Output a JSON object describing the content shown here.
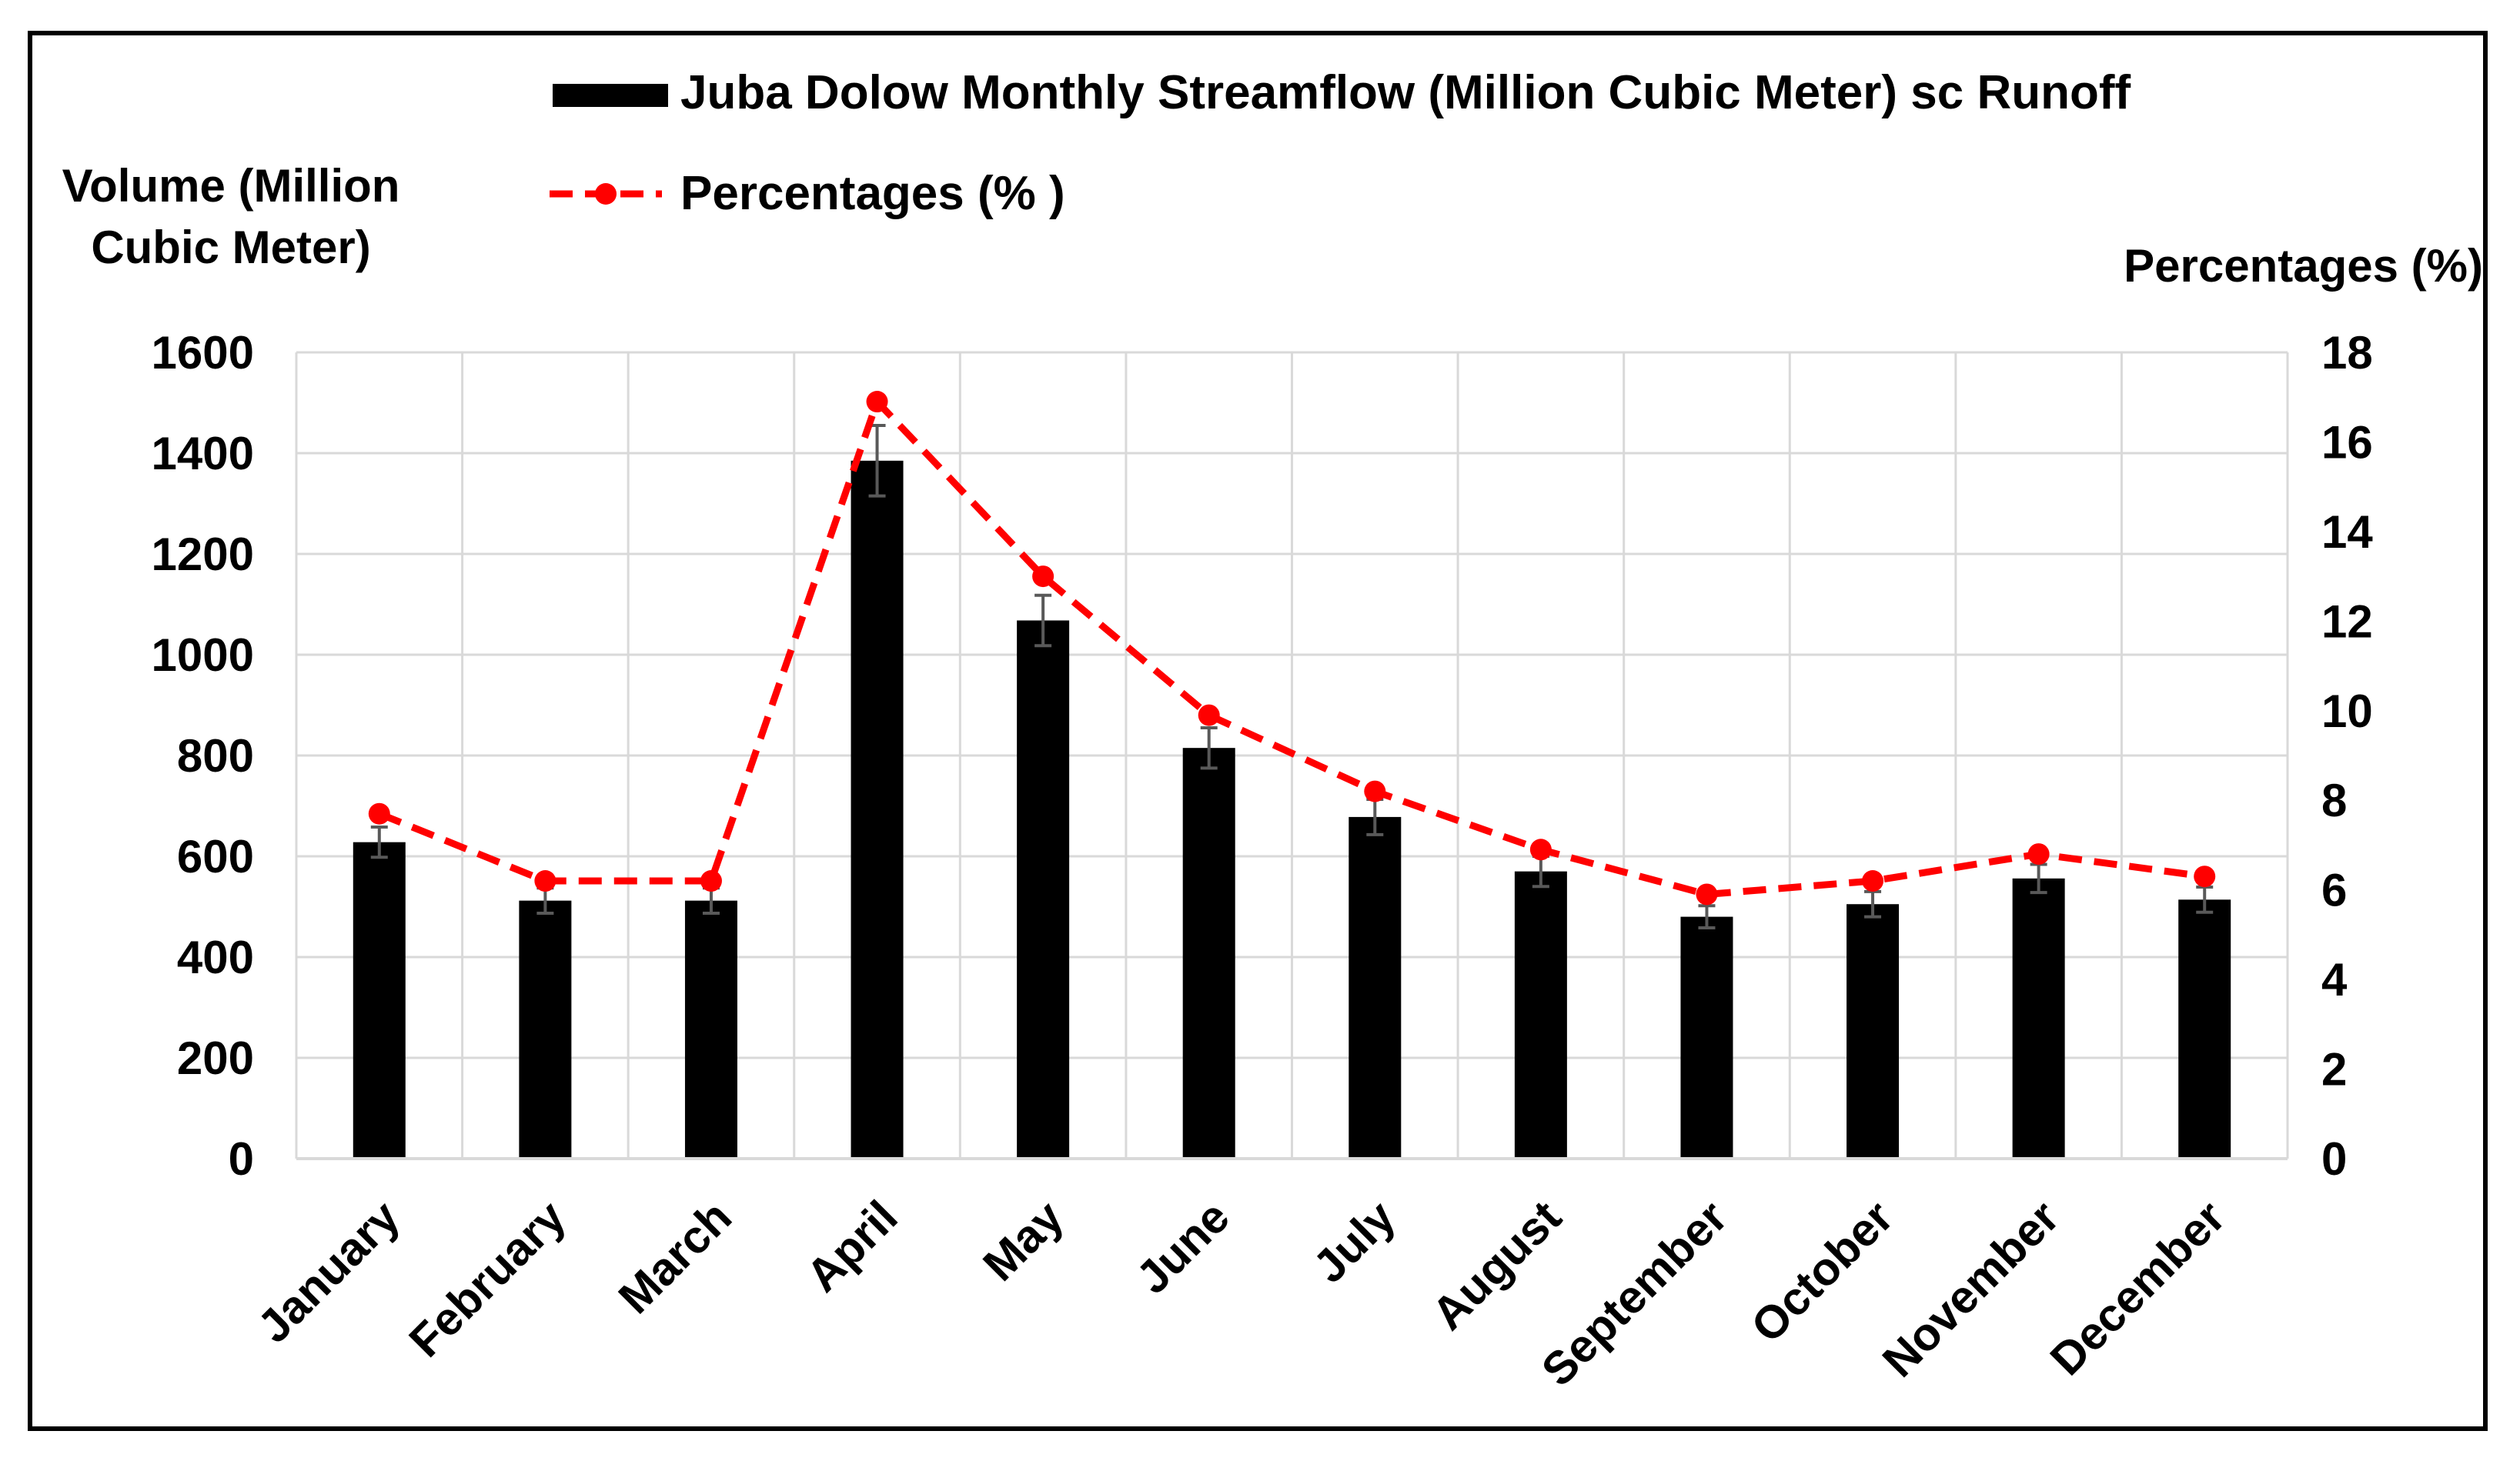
{
  "chart_data": {
    "type": "bar",
    "categories": [
      "January",
      "February",
      "March",
      "April",
      "May",
      "June",
      "July",
      "August",
      "September",
      "October",
      "November",
      "December"
    ],
    "series": [
      {
        "name": "Juba Dolow Monthly Streamflow (Million Cubic Meter) sc Runoff",
        "kind": "bar",
        "axis": "left",
        "values": [
          628,
          512,
          512,
          1385,
          1068,
          815,
          678,
          570,
          480,
          505,
          556,
          514
        ],
        "error": [
          30,
          25,
          25,
          70,
          50,
          40,
          35,
          30,
          22,
          25,
          28,
          25
        ]
      },
      {
        "name": "Percentages (%)",
        "kind": "line",
        "axis": "right",
        "values": [
          7.7,
          6.2,
          6.2,
          16.9,
          13.0,
          9.9,
          8.2,
          6.9,
          5.9,
          6.2,
          6.8,
          6.3
        ]
      }
    ],
    "ylabel": "Volume (Million Cubic Meter)",
    "ylabel_lines": [
      "Volume (Million",
      "Cubic Meter)"
    ],
    "y2label": "Percentages (%)",
    "ylim": [
      0,
      1600
    ],
    "y2lim": [
      0,
      18
    ],
    "yticks": [
      0,
      200,
      400,
      600,
      800,
      1000,
      1200,
      1400,
      1600
    ],
    "y2ticks": [
      0,
      2,
      4,
      6,
      8,
      10,
      12,
      14,
      16,
      18
    ],
    "grid": true,
    "legend": [
      "Juba Dolow Monthly Streamflow (Million Cubic Meter) sc Runoff",
      "Percentages (% )"
    ],
    "legend_position": "top",
    "colors": {
      "bar": "#000000",
      "line": "#ff0000",
      "grid": "#d9d9d9",
      "error": "#595959"
    }
  }
}
